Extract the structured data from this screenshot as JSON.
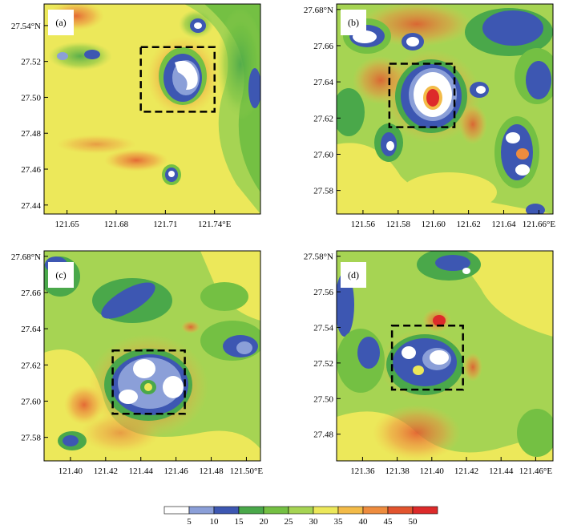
{
  "chart_data": [
    {
      "type": "heatmap",
      "panel_label": "(a)",
      "x_ticks": [
        121.65,
        121.68,
        121.71,
        121.74
      ],
      "x_tick_labels": [
        "121.65",
        "121.68",
        "121.71",
        "121.74°E"
      ],
      "y_ticks": [
        27.44,
        27.46,
        27.48,
        27.5,
        27.52,
        27.54
      ],
      "y_tick_labels": [
        "27.44",
        "27.46",
        "27.48",
        "27.50",
        "27.52",
        "27.54°N"
      ],
      "xlim": [
        121.636,
        121.768
      ],
      "ylim": [
        27.435,
        27.552
      ],
      "box": {
        "x": [
          121.695,
          121.74
        ],
        "y": [
          27.492,
          27.528
        ]
      }
    },
    {
      "type": "heatmap",
      "panel_label": "(b)",
      "x_ticks": [
        121.56,
        121.58,
        121.6,
        121.62,
        121.64,
        121.66
      ],
      "x_tick_labels": [
        "121.56",
        "121.58",
        "121.60",
        "121.62",
        "121.64",
        "121.66°E"
      ],
      "y_ticks": [
        27.58,
        27.6,
        27.62,
        27.64,
        27.66,
        27.68
      ],
      "y_tick_labels": [
        "27.58",
        "27.60",
        "27.62",
        "27.64",
        "27.66",
        "27.68°N"
      ],
      "xlim": [
        121.545,
        121.668
      ],
      "ylim": [
        27.567,
        27.683
      ],
      "box": {
        "x": [
          121.575,
          121.612
        ],
        "y": [
          27.615,
          27.65
        ]
      }
    },
    {
      "type": "heatmap",
      "panel_label": "(c)",
      "x_ticks": [
        121.4,
        121.42,
        121.44,
        121.46,
        121.48,
        121.5
      ],
      "x_tick_labels": [
        "121.40",
        "121.42",
        "121.44",
        "121.46",
        "121.48",
        "121.50°E"
      ],
      "y_ticks": [
        27.58,
        27.6,
        27.62,
        27.64,
        27.66,
        27.68
      ],
      "y_tick_labels": [
        "27.58",
        "27.60",
        "27.62",
        "27.64",
        "27.66",
        "27.68°N"
      ],
      "xlim": [
        121.385,
        121.508
      ],
      "ylim": [
        27.567,
        27.683
      ],
      "box": {
        "x": [
          121.424,
          121.465
        ],
        "y": [
          27.593,
          27.628
        ]
      }
    },
    {
      "type": "heatmap",
      "panel_label": "(d)",
      "x_ticks": [
        121.36,
        121.38,
        121.4,
        121.42,
        121.44,
        121.46
      ],
      "x_tick_labels": [
        "121.36",
        "121.38",
        "121.40",
        "121.42",
        "121.44",
        "121.46°E"
      ],
      "y_ticks": [
        27.48,
        27.5,
        27.52,
        27.54,
        27.56,
        27.58
      ],
      "y_tick_labels": [
        "27.48",
        "27.50",
        "27.52",
        "27.54",
        "27.56",
        "27.58°N"
      ],
      "xlim": [
        121.345,
        121.47
      ],
      "ylim": [
        27.465,
        27.583
      ],
      "box": {
        "x": [
          121.377,
          121.418
        ],
        "y": [
          27.505,
          27.541
        ]
      }
    }
  ],
  "colorbar": {
    "levels": [
      "5",
      "10",
      "15",
      "20",
      "25",
      "30",
      "35",
      "40",
      "45",
      "50"
    ],
    "colors": [
      "#ffffff",
      "#8b9fd8",
      "#3d57b2",
      "#4aa84a",
      "#74c043",
      "#a6d453",
      "#ece85a",
      "#f3bb48",
      "#ee8c3e",
      "#e2542e",
      "#dd2a2a"
    ]
  }
}
